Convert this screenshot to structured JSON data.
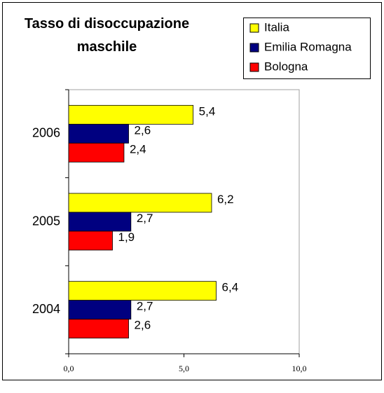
{
  "chart_data": {
    "type": "bar",
    "orientation": "horizontal",
    "title": "Tasso di disoccupazione maschile",
    "categories": [
      "2006",
      "2005",
      "2004"
    ],
    "series": [
      {
        "name": "Italia",
        "color": "#ffff00",
        "values": [
          5.4,
          6.2,
          6.4
        ],
        "value_labels": [
          "5,4",
          "6,2",
          "6,4"
        ]
      },
      {
        "name": "Emilia Romagna",
        "color": "#000080",
        "values": [
          2.6,
          2.7,
          2.7
        ],
        "value_labels": [
          "2,6",
          "2,7",
          "2,7"
        ]
      },
      {
        "name": "Bologna",
        "color": "#ff0000",
        "values": [
          2.4,
          1.9,
          2.6
        ],
        "value_labels": [
          "2,4",
          "1,9",
          "2,6"
        ]
      }
    ],
    "xlim": [
      0,
      10
    ],
    "xticks": [
      {
        "value": 0,
        "label": "0,0"
      },
      {
        "value": 5,
        "label": "5,0"
      },
      {
        "value": 10,
        "label": "10,0"
      }
    ],
    "legend": "top-right",
    "grid": false
  }
}
